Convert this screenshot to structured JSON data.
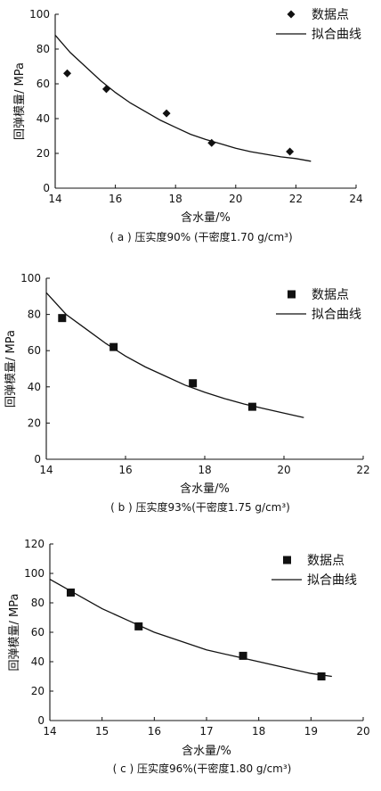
{
  "chart_data": [
    {
      "type": "scatter",
      "title": "",
      "caption": "( a ) 压实度90% (干密度1.70 g/cm³)",
      "xlabel": "含水量/%",
      "ylabel": "回弹模量/ MPa",
      "xlim": [
        14,
        24
      ],
      "ylim": [
        0,
        100
      ],
      "xticks": [
        14,
        16,
        18,
        20,
        22,
        24
      ],
      "yticks": [
        0,
        20,
        40,
        60,
        80,
        100
      ],
      "grid": false,
      "legend_position": "top-right",
      "series": [
        {
          "name": "数据点",
          "marker": "diamond",
          "x": [
            14.4,
            15.7,
            17.7,
            19.2,
            21.8
          ],
          "y": [
            66,
            57,
            43,
            26,
            21
          ]
        },
        {
          "name": "拟合曲线",
          "style": "line",
          "x": [
            14.0,
            14.5,
            15.0,
            15.5,
            16.0,
            16.5,
            17.0,
            17.5,
            18.0,
            18.5,
            19.0,
            19.5,
            20.0,
            20.5,
            21.0,
            21.5,
            22.0,
            22.5
          ],
          "y": [
            88,
            78,
            70,
            62,
            55,
            49,
            44,
            39,
            35,
            31,
            28,
            25.5,
            23,
            21,
            19.5,
            18,
            17,
            15.5
          ]
        }
      ]
    },
    {
      "type": "scatter",
      "title": "",
      "caption": "( b ) 压实度93%(干密度1.75 g/cm³)",
      "xlabel": "含水量/%",
      "ylabel": "回弹模量/ MPa",
      "xlim": [
        14,
        22
      ],
      "ylim": [
        0,
        100
      ],
      "xticks": [
        14,
        16,
        18,
        20,
        22
      ],
      "yticks": [
        0,
        20,
        40,
        60,
        80,
        100
      ],
      "grid": false,
      "legend_position": "top-right",
      "series": [
        {
          "name": "数据点",
          "marker": "square",
          "x": [
            14.4,
            15.7,
            17.7,
            19.2
          ],
          "y": [
            78,
            62,
            42,
            29
          ]
        },
        {
          "name": "拟合曲线",
          "style": "line",
          "x": [
            14.0,
            14.5,
            15.0,
            15.5,
            16.0,
            16.5,
            17.0,
            17.5,
            18.0,
            18.5,
            19.0,
            19.5,
            20.0,
            20.5
          ],
          "y": [
            92,
            80,
            72,
            64,
            57,
            51,
            46,
            41,
            37,
            33.5,
            30.5,
            28,
            25.5,
            23
          ]
        }
      ]
    },
    {
      "type": "scatter",
      "title": "",
      "caption": "( c ) 压实度96%(干密度1.80 g/cm³)",
      "xlabel": "含水量/%",
      "ylabel": "回弹模量/ MPa",
      "xlim": [
        14,
        20
      ],
      "ylim": [
        0,
        120
      ],
      "xticks": [
        14,
        15,
        16,
        17,
        18,
        19,
        20
      ],
      "yticks": [
        0,
        20,
        40,
        60,
        80,
        100,
        120
      ],
      "grid": false,
      "legend_position": "top-right",
      "series": [
        {
          "name": "数据点",
          "marker": "square",
          "x": [
            14.4,
            15.7,
            17.7,
            19.2
          ],
          "y": [
            87,
            64,
            44,
            30
          ]
        },
        {
          "name": "拟合曲线",
          "style": "line",
          "x": [
            14.0,
            14.5,
            15.0,
            15.5,
            16.0,
            16.5,
            17.0,
            17.5,
            18.0,
            18.5,
            19.0,
            19.4
          ],
          "y": [
            96,
            86,
            76,
            68,
            60,
            54,
            48,
            44,
            40,
            36,
            32,
            30
          ]
        }
      ]
    }
  ]
}
